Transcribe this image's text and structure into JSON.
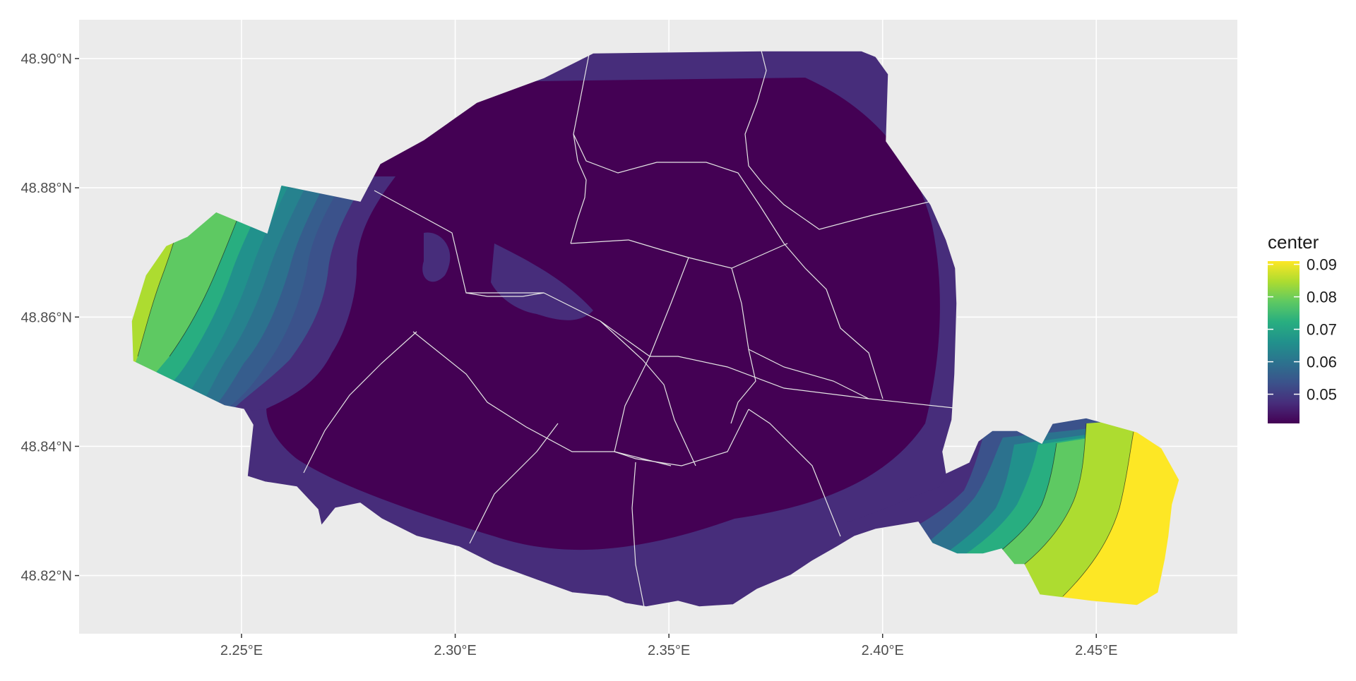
{
  "chart_data": {
    "type": "heatmap",
    "subtype": "filled-contour map",
    "x_axis": {
      "ticks": [
        2.25,
        2.3,
        2.35,
        2.4,
        2.45
      ],
      "tick_labels": [
        "2.25°E",
        "2.30°E",
        "2.35°E",
        "2.40°E",
        "2.45°E"
      ],
      "range": [
        2.212,
        2.483
      ]
    },
    "y_axis": {
      "ticks": [
        48.82,
        48.84,
        48.86,
        48.88,
        48.9
      ],
      "tick_labels": [
        "48.82°N",
        "48.84°N",
        "48.86°N",
        "48.88°N",
        "48.90°N"
      ],
      "range": [
        48.811,
        48.906
      ]
    },
    "legend": {
      "title": "center",
      "position": "right",
      "breaks": [
        0.05,
        0.06,
        0.07,
        0.08,
        0.09
      ],
      "break_labels": [
        "0.05",
        "0.06",
        "0.07",
        "0.08",
        "0.09"
      ],
      "limits": [
        0.041,
        0.091
      ]
    },
    "colors": {
      "panel_background": "#ebebeb",
      "grid": "#ffffff",
      "palette": [
        "#440154",
        "#472d7b",
        "#3b528b",
        "#2c728e",
        "#21918c",
        "#28ae80",
        "#5ec962",
        "#addc30",
        "#fde725"
      ]
    },
    "grid": true,
    "fill_levels_observed": {
      "interior": 0.042,
      "west_edge": 0.085,
      "southeast_edge": 0.091
    }
  }
}
